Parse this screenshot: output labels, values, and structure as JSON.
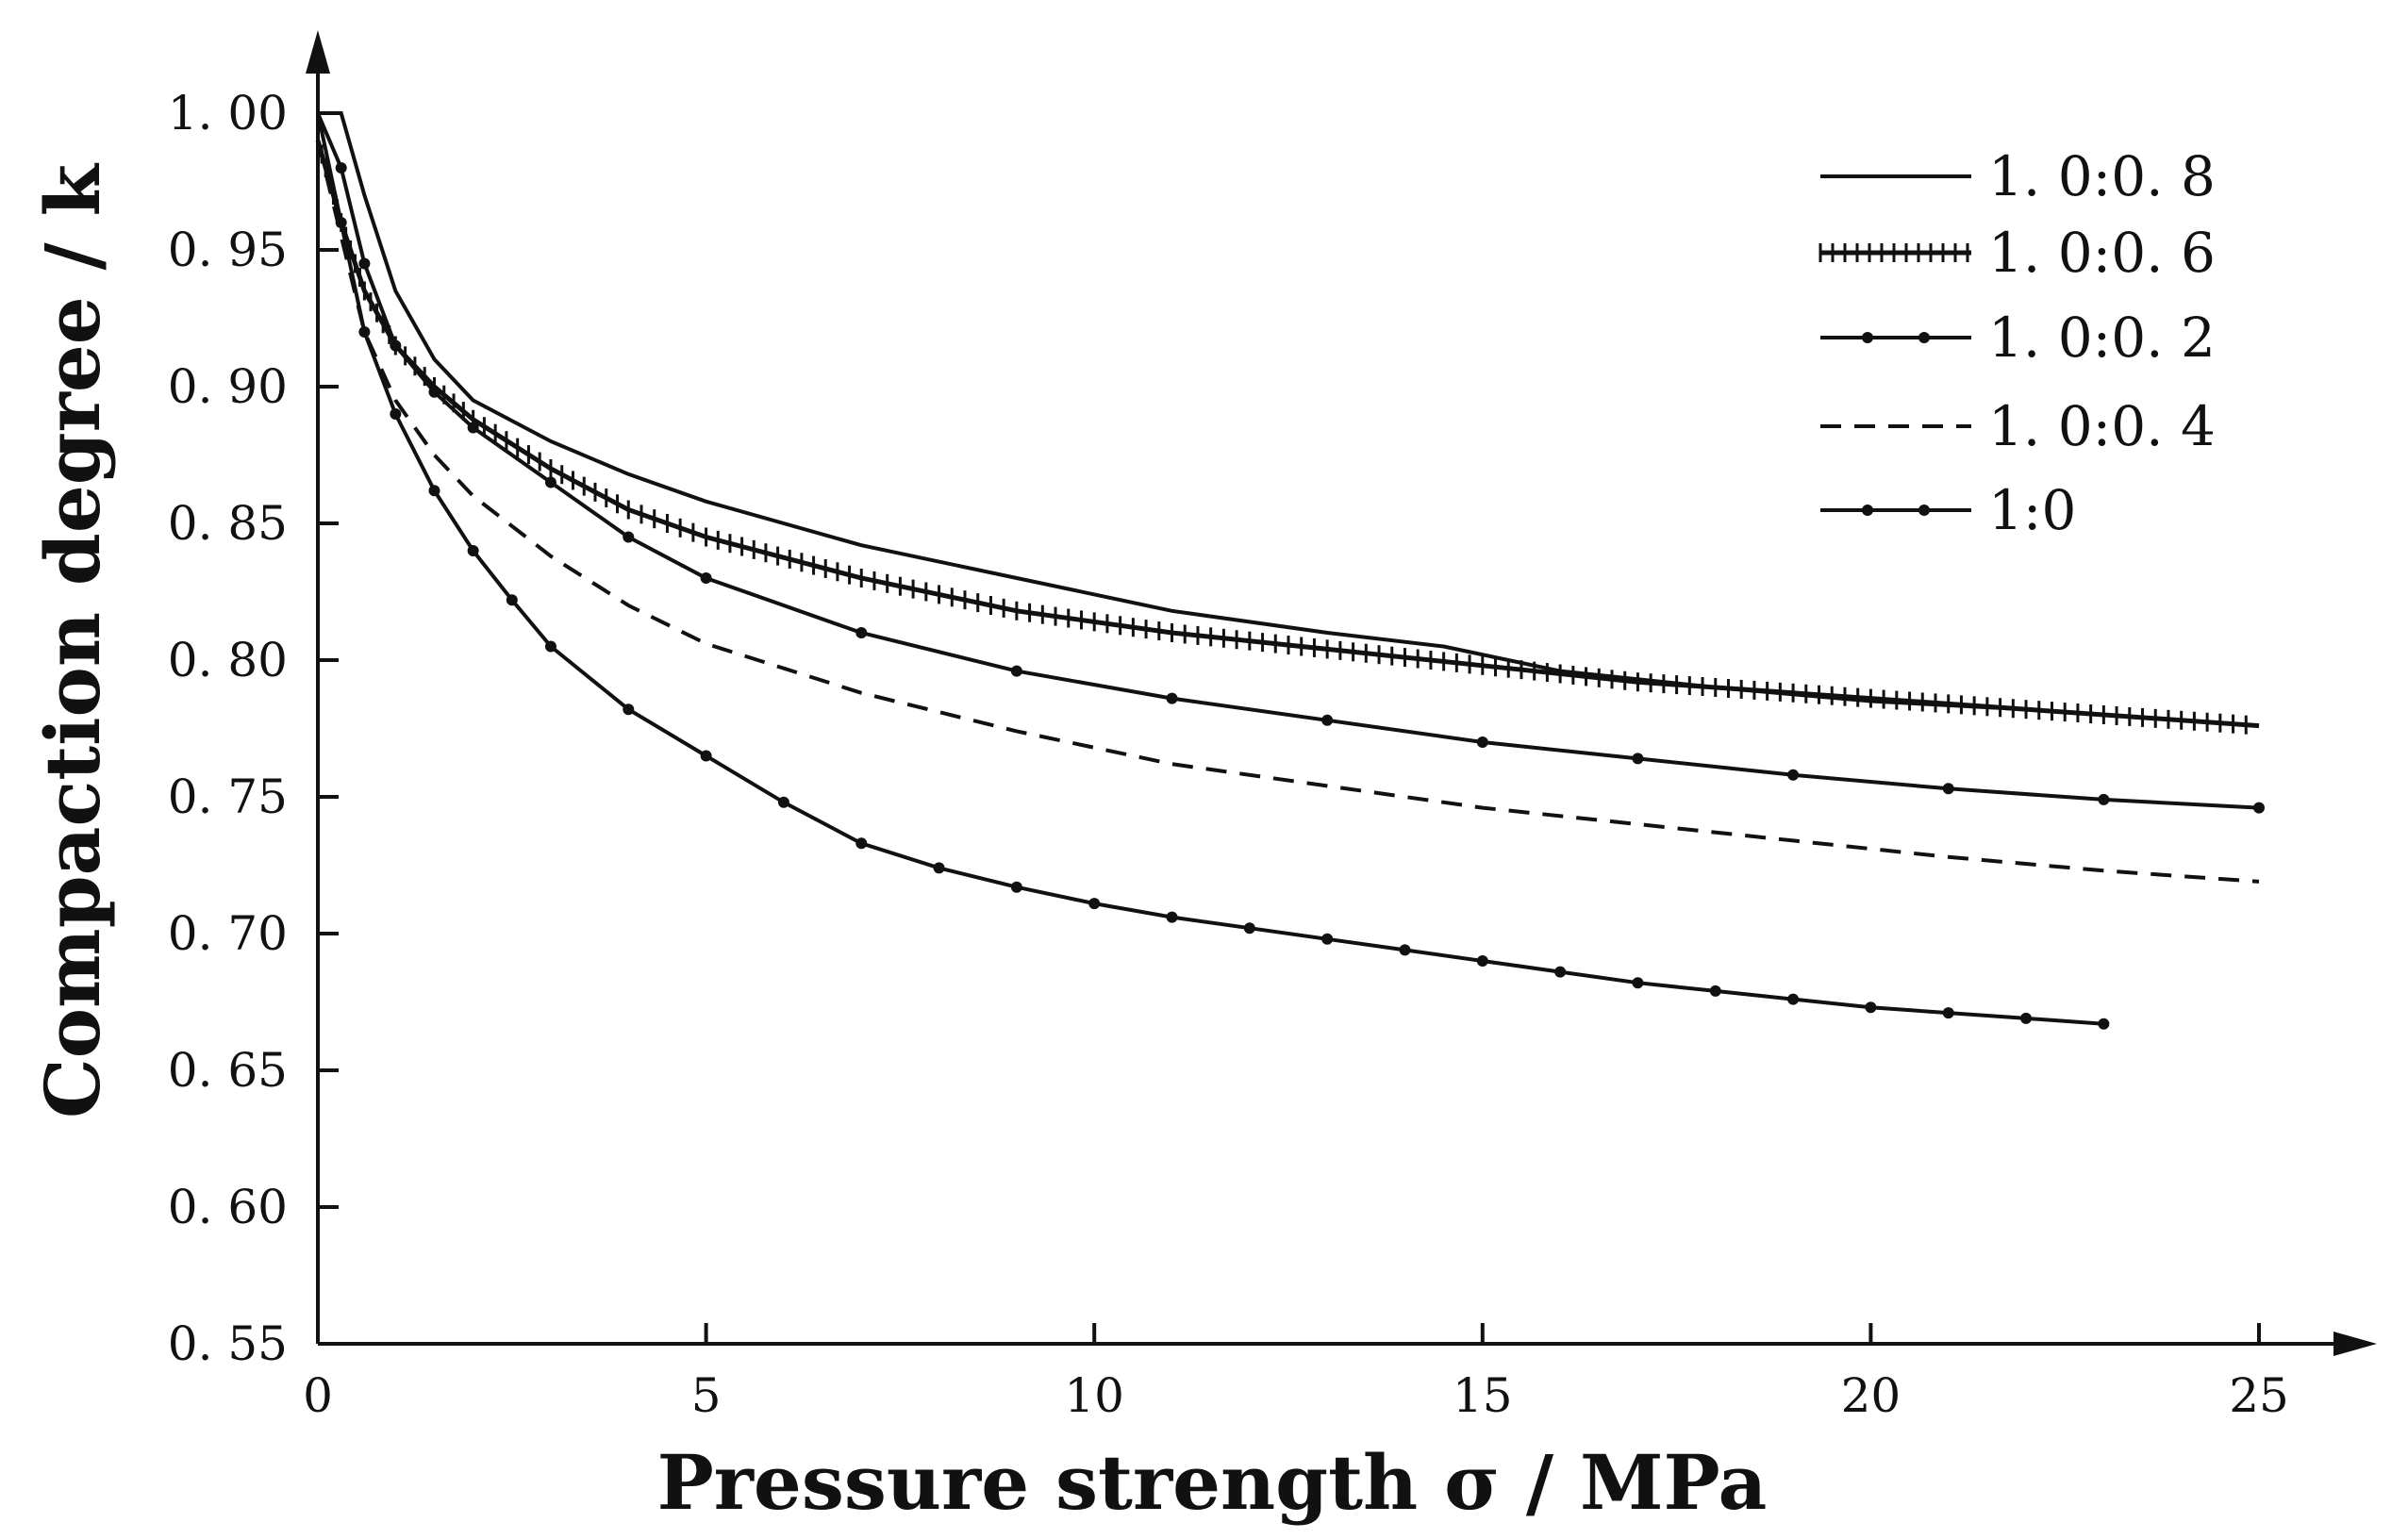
{
  "chart_data": {
    "type": "line",
    "title": "",
    "xlabel": "Pressure strength σ / MPa",
    "ylabel": "Compaction degree / k",
    "xlim": [
      0,
      25
    ],
    "ylim": [
      0.55,
      1.0
    ],
    "xticks": [
      "0",
      "5",
      "10",
      "15",
      "20",
      "25"
    ],
    "yticks": [
      "0. 55",
      "0. 60",
      "0. 65",
      "0. 70",
      "0. 75",
      "0. 80",
      "0. 85",
      "0. 90",
      "0. 95",
      "1. 00"
    ],
    "legend_position": "top-right",
    "grid": false,
    "series": [
      {
        "name": "1. 0:0. 8",
        "style": "solid",
        "x": [
          0,
          0.3,
          0.6,
          1.0,
          1.5,
          2,
          3,
          4,
          5,
          7,
          9,
          11,
          13,
          14.5,
          16,
          18,
          20,
          22,
          25
        ],
        "y": [
          1.0,
          1.0,
          0.97,
          0.935,
          0.91,
          0.895,
          0.88,
          0.868,
          0.858,
          0.842,
          0.83,
          0.818,
          0.81,
          0.805,
          0.796,
          0.79,
          0.785,
          0.782,
          0.776
        ]
      },
      {
        "name": "1. 0:0. 6",
        "style": "hatched",
        "x": [
          0,
          0.3,
          0.6,
          1.0,
          1.5,
          2,
          3,
          4,
          5,
          7,
          9,
          11,
          13,
          15,
          17,
          19,
          21,
          23,
          25
        ],
        "y": [
          0.99,
          0.96,
          0.935,
          0.915,
          0.9,
          0.888,
          0.87,
          0.855,
          0.845,
          0.83,
          0.818,
          0.81,
          0.804,
          0.798,
          0.792,
          0.788,
          0.784,
          0.78,
          0.776
        ]
      },
      {
        "name": "1. 0:0. 2",
        "style": "solid-marker",
        "x": [
          0,
          0.3,
          0.6,
          1.0,
          1.5,
          2,
          3,
          4,
          5,
          7,
          9,
          11,
          13,
          15,
          17,
          19,
          21,
          23,
          25
        ],
        "y": [
          1.0,
          0.98,
          0.945,
          0.915,
          0.898,
          0.885,
          0.865,
          0.845,
          0.83,
          0.81,
          0.796,
          0.786,
          0.778,
          0.77,
          0.764,
          0.758,
          0.753,
          0.749,
          0.746
        ]
      },
      {
        "name": "1. 0:0. 4",
        "style": "dashed",
        "x": [
          0,
          0.3,
          0.6,
          1.0,
          1.5,
          2,
          3,
          4,
          5,
          7,
          9,
          11,
          13,
          15,
          17,
          19,
          21,
          23,
          25
        ],
        "y": [
          0.99,
          0.955,
          0.92,
          0.895,
          0.875,
          0.86,
          0.838,
          0.82,
          0.806,
          0.788,
          0.774,
          0.762,
          0.754,
          0.746,
          0.74,
          0.734,
          0.728,
          0.723,
          0.719
        ]
      },
      {
        "name": "1:0",
        "style": "solid-marker",
        "x": [
          0,
          0.3,
          0.6,
          1.0,
          1.5,
          2,
          2.5,
          3,
          4,
          5,
          6,
          7,
          8,
          9,
          10,
          11,
          12,
          13,
          14,
          15,
          16,
          17,
          18,
          19,
          20,
          21,
          22,
          23
        ],
        "y": [
          1.0,
          0.96,
          0.92,
          0.89,
          0.862,
          0.84,
          0.822,
          0.805,
          0.782,
          0.765,
          0.748,
          0.733,
          0.724,
          0.717,
          0.711,
          0.706,
          0.702,
          0.698,
          0.694,
          0.69,
          0.686,
          0.682,
          0.679,
          0.676,
          0.673,
          0.671,
          0.669,
          0.667
        ]
      }
    ]
  }
}
